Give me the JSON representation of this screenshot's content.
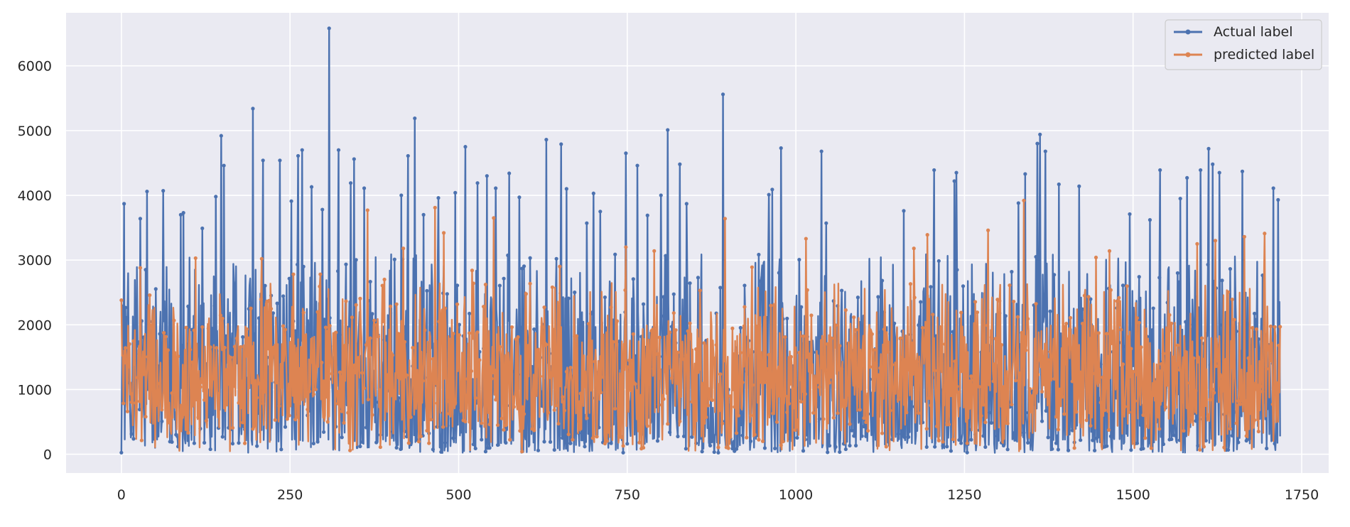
{
  "chart_data": {
    "type": "line",
    "title": "",
    "xlabel": "",
    "ylabel": "",
    "xlim": [
      -82,
      1790
    ],
    "ylim": [
      -290,
      6820
    ],
    "x_ticks": [
      0,
      250,
      500,
      750,
      1000,
      1250,
      1500,
      1750
    ],
    "y_ticks": [
      0,
      1000,
      2000,
      3000,
      4000,
      5000,
      6000
    ],
    "grid": true,
    "legend_position": "top-right",
    "n_points": 1719,
    "series": [
      {
        "name": "Actual label",
        "color": "#4c72b0",
        "marker": "circle",
        "peaks": [
          {
            "x": 4,
            "y": 3870
          },
          {
            "x": 28,
            "y": 3640
          },
          {
            "x": 38,
            "y": 4060
          },
          {
            "x": 62,
            "y": 4070
          },
          {
            "x": 88,
            "y": 3700
          },
          {
            "x": 92,
            "y": 3730
          },
          {
            "x": 120,
            "y": 3490
          },
          {
            "x": 140,
            "y": 3980
          },
          {
            "x": 148,
            "y": 4920
          },
          {
            "x": 152,
            "y": 4460
          },
          {
            "x": 195,
            "y": 5340
          },
          {
            "x": 210,
            "y": 4540
          },
          {
            "x": 235,
            "y": 4540
          },
          {
            "x": 252,
            "y": 3910
          },
          {
            "x": 262,
            "y": 4610
          },
          {
            "x": 268,
            "y": 4700
          },
          {
            "x": 282,
            "y": 4130
          },
          {
            "x": 298,
            "y": 3780
          },
          {
            "x": 308,
            "y": 6580
          },
          {
            "x": 322,
            "y": 4700
          },
          {
            "x": 340,
            "y": 4190
          },
          {
            "x": 345,
            "y": 4560
          },
          {
            "x": 360,
            "y": 4110
          },
          {
            "x": 415,
            "y": 4000
          },
          {
            "x": 425,
            "y": 4610
          },
          {
            "x": 435,
            "y": 5190
          },
          {
            "x": 448,
            "y": 3700
          },
          {
            "x": 470,
            "y": 3960
          },
          {
            "x": 495,
            "y": 4040
          },
          {
            "x": 510,
            "y": 4750
          },
          {
            "x": 528,
            "y": 4190
          },
          {
            "x": 542,
            "y": 4300
          },
          {
            "x": 555,
            "y": 4110
          },
          {
            "x": 575,
            "y": 4340
          },
          {
            "x": 590,
            "y": 3970
          },
          {
            "x": 630,
            "y": 4860
          },
          {
            "x": 652,
            "y": 4790
          },
          {
            "x": 660,
            "y": 4100
          },
          {
            "x": 690,
            "y": 3570
          },
          {
            "x": 700,
            "y": 4030
          },
          {
            "x": 710,
            "y": 3750
          },
          {
            "x": 748,
            "y": 4650
          },
          {
            "x": 765,
            "y": 4460
          },
          {
            "x": 780,
            "y": 3690
          },
          {
            "x": 800,
            "y": 4000
          },
          {
            "x": 810,
            "y": 5010
          },
          {
            "x": 828,
            "y": 4480
          },
          {
            "x": 838,
            "y": 3870
          },
          {
            "x": 892,
            "y": 5560
          },
          {
            "x": 960,
            "y": 4010
          },
          {
            "x": 965,
            "y": 4090
          },
          {
            "x": 978,
            "y": 4730
          },
          {
            "x": 1038,
            "y": 4680
          },
          {
            "x": 1045,
            "y": 3570
          },
          {
            "x": 1160,
            "y": 3760
          },
          {
            "x": 1205,
            "y": 4390
          },
          {
            "x": 1235,
            "y": 4220
          },
          {
            "x": 1238,
            "y": 4350
          },
          {
            "x": 1330,
            "y": 3880
          },
          {
            "x": 1340,
            "y": 4330
          },
          {
            "x": 1358,
            "y": 4800
          },
          {
            "x": 1362,
            "y": 4940
          },
          {
            "x": 1370,
            "y": 4680
          },
          {
            "x": 1390,
            "y": 4170
          },
          {
            "x": 1420,
            "y": 4140
          },
          {
            "x": 1495,
            "y": 3710
          },
          {
            "x": 1525,
            "y": 3620
          },
          {
            "x": 1540,
            "y": 4390
          },
          {
            "x": 1570,
            "y": 3950
          },
          {
            "x": 1580,
            "y": 4270
          },
          {
            "x": 1600,
            "y": 4390
          },
          {
            "x": 1612,
            "y": 4720
          },
          {
            "x": 1618,
            "y": 4480
          },
          {
            "x": 1628,
            "y": 4350
          },
          {
            "x": 1662,
            "y": 4370
          },
          {
            "x": 1708,
            "y": 4110
          },
          {
            "x": 1715,
            "y": 3930
          }
        ],
        "base_range": [
          0,
          3000
        ]
      },
      {
        "name": "predicted label",
        "color": "#dd8452",
        "marker": "circle",
        "peaks": [
          {
            "x": 0,
            "y": 2380
          },
          {
            "x": 28,
            "y": 2880
          },
          {
            "x": 110,
            "y": 3030
          },
          {
            "x": 208,
            "y": 3020
          },
          {
            "x": 255,
            "y": 2780
          },
          {
            "x": 295,
            "y": 2780
          },
          {
            "x": 365,
            "y": 3770
          },
          {
            "x": 390,
            "y": 2700
          },
          {
            "x": 418,
            "y": 3180
          },
          {
            "x": 465,
            "y": 3810
          },
          {
            "x": 478,
            "y": 3420
          },
          {
            "x": 520,
            "y": 2840
          },
          {
            "x": 552,
            "y": 3650
          },
          {
            "x": 650,
            "y": 2900
          },
          {
            "x": 748,
            "y": 3200
          },
          {
            "x": 790,
            "y": 3140
          },
          {
            "x": 858,
            "y": 2530
          },
          {
            "x": 895,
            "y": 3640
          },
          {
            "x": 935,
            "y": 2890
          },
          {
            "x": 1015,
            "y": 3330
          },
          {
            "x": 1175,
            "y": 3180
          },
          {
            "x": 1195,
            "y": 3390
          },
          {
            "x": 1285,
            "y": 3460
          },
          {
            "x": 1338,
            "y": 3920
          },
          {
            "x": 1445,
            "y": 3040
          },
          {
            "x": 1465,
            "y": 3140
          },
          {
            "x": 1595,
            "y": 3250
          },
          {
            "x": 1622,
            "y": 3300
          },
          {
            "x": 1665,
            "y": 3360
          },
          {
            "x": 1695,
            "y": 3410
          },
          {
            "x": 1718,
            "y": 1970
          }
        ],
        "base_range": [
          0,
          2600
        ]
      }
    ]
  }
}
